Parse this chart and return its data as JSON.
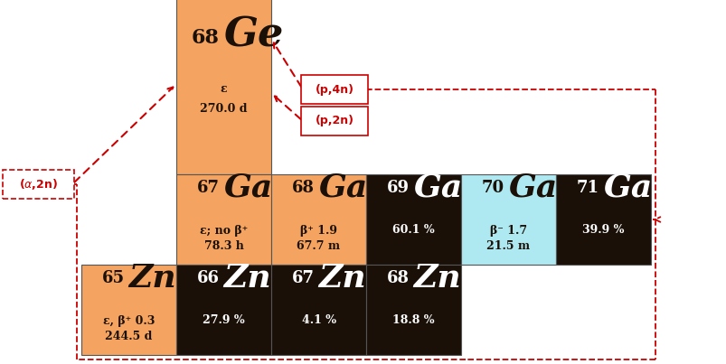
{
  "bg_color": "#ffffff",
  "orange_color": "#F4A460",
  "dark_color": "#1a1008",
  "cyan_color": "#aee8f0",
  "red_color": "#cc0000",
  "cell_size": 1.0,
  "cells": [
    {
      "col": 2,
      "row": 0,
      "span_col": 1,
      "span_row": 2,
      "bg": "orange",
      "symbol": "Ge",
      "mass": "68",
      "line1": "ε",
      "line2": "270.0 d",
      "text_color": "dark"
    },
    {
      "col": 2,
      "row": 2,
      "span_col": 1,
      "span_row": 1,
      "bg": "orange",
      "symbol": "Ga",
      "mass": "67",
      "line1": "ε; no β⁺",
      "line2": "78.3 h",
      "text_color": "dark"
    },
    {
      "col": 3,
      "row": 2,
      "span_col": 1,
      "span_row": 1,
      "bg": "orange",
      "symbol": "Ga",
      "mass": "68",
      "line1": "β⁺ 1.9",
      "line2": "67.7 m",
      "text_color": "dark"
    },
    {
      "col": 4,
      "row": 2,
      "span_col": 1,
      "span_row": 1,
      "bg": "dark",
      "symbol": "Ga",
      "mass": "69",
      "line1": "60.1 %",
      "line2": "",
      "text_color": "white"
    },
    {
      "col": 5,
      "row": 2,
      "span_col": 1,
      "span_row": 1,
      "bg": "cyan",
      "symbol": "Ga",
      "mass": "70",
      "line1": "β⁻ 1.7",
      "line2": "21.5 m",
      "text_color": "dark"
    },
    {
      "col": 6,
      "row": 2,
      "span_col": 1,
      "span_row": 1,
      "bg": "dark",
      "symbol": "Ga",
      "mass": "71",
      "line1": "39.9 %",
      "line2": "",
      "text_color": "white"
    },
    {
      "col": 1,
      "row": 3,
      "span_col": 1,
      "span_row": 1,
      "bg": "orange",
      "symbol": "Zn",
      "mass": "65",
      "line1": "ε, β⁺ 0.3",
      "line2": "244.5 d",
      "text_color": "dark"
    },
    {
      "col": 2,
      "row": 3,
      "span_col": 1,
      "span_row": 1,
      "bg": "dark",
      "symbol": "Zn",
      "mass": "66",
      "line1": "27.9 %",
      "line2": "",
      "text_color": "white"
    },
    {
      "col": 3,
      "row": 3,
      "span_col": 1,
      "span_row": 1,
      "bg": "dark",
      "symbol": "Zn",
      "mass": "67",
      "line1": "4.1 %",
      "line2": "",
      "text_color": "white"
    },
    {
      "col": 4,
      "row": 3,
      "span_col": 1,
      "span_row": 1,
      "bg": "dark",
      "symbol": "Zn",
      "mass": "68",
      "line1": "18.8 %",
      "line2": "",
      "text_color": "white"
    }
  ]
}
